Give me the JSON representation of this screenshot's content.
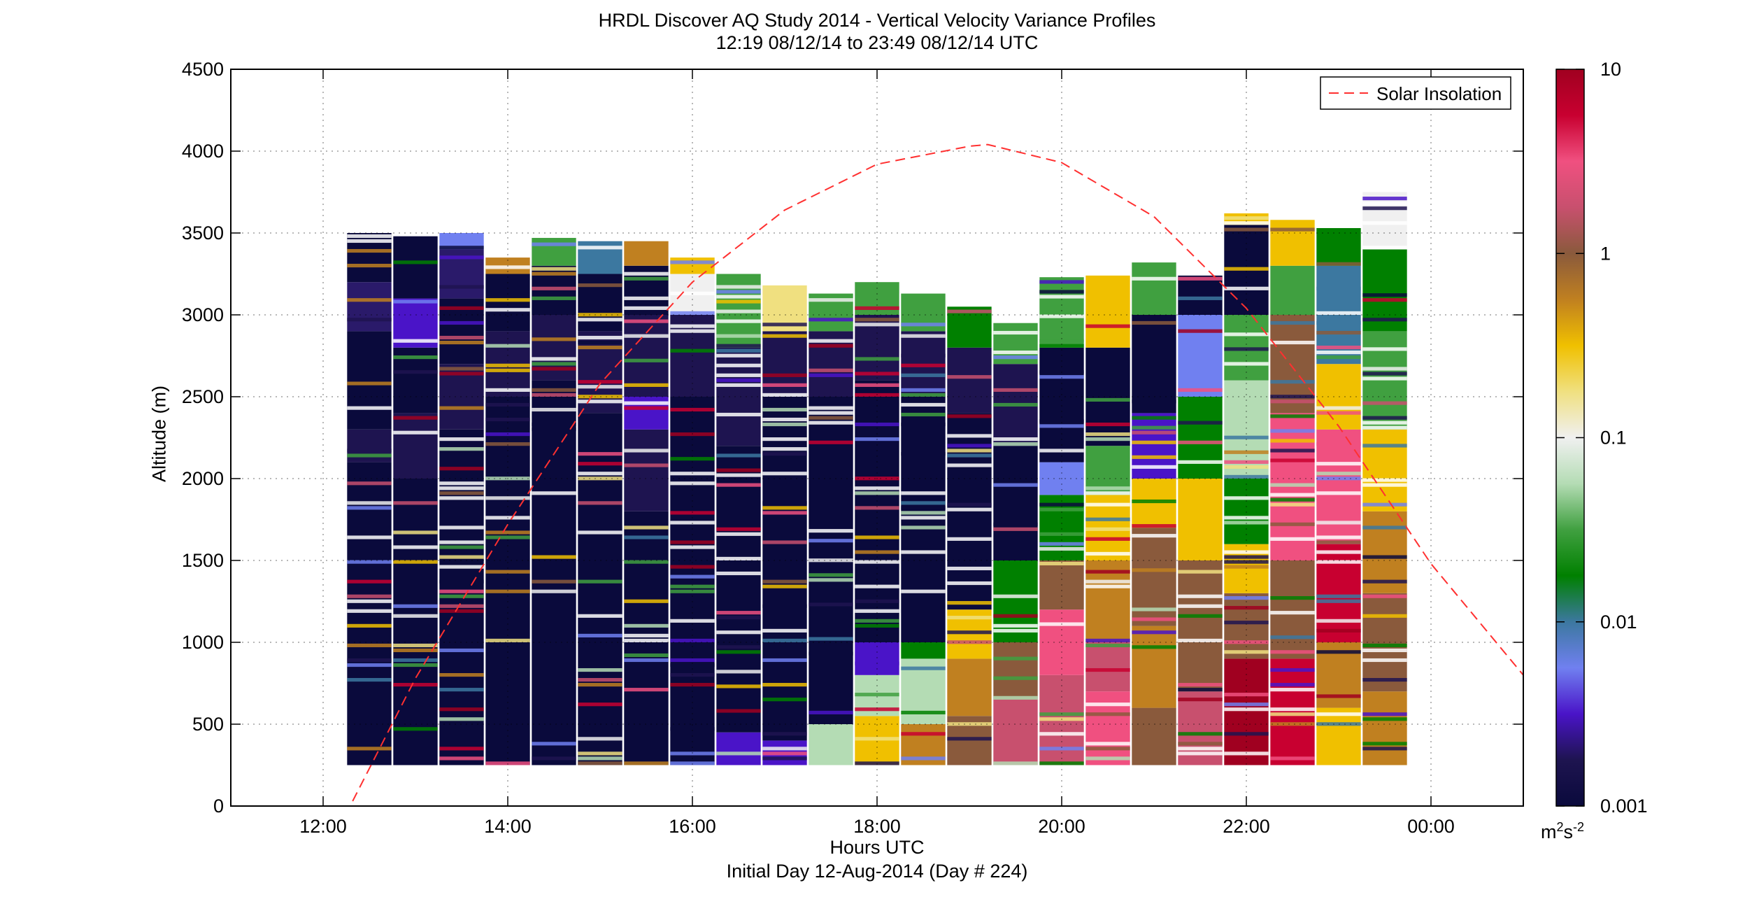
{
  "chart_data": {
    "type": "heatmap",
    "title": "HRDL Discover AQ Study 2014 - Vertical Velocity Variance Profiles",
    "subtitle": "12:19 08/12/14 to 23:49 08/12/14  UTC",
    "xlabel": "Hours UTC",
    "xlabel2": "Initial Day 12-Aug-2014 (Day # 224)",
    "ylabel": "Altitude (m)",
    "xlim": [
      11.0,
      25.0
    ],
    "ylim": [
      0,
      4500
    ],
    "x_ticks": [
      12,
      14,
      16,
      18,
      20,
      22,
      24
    ],
    "x_tick_labels": [
      "12:00",
      "14:00",
      "16:00",
      "18:00",
      "20:00",
      "22:00",
      "00:00"
    ],
    "y_ticks": [
      0,
      500,
      1000,
      1500,
      2000,
      2500,
      3000,
      3500,
      4000,
      4500
    ],
    "y_tick_labels": [
      "0",
      "500",
      "1000",
      "1500",
      "2000",
      "2500",
      "3000",
      "3500",
      "4000",
      "4500"
    ],
    "grid": true,
    "colorbar": {
      "scale": "log",
      "range": [
        0.001,
        10
      ],
      "ticks": [
        0.001,
        0.01,
        0.1,
        1,
        10
      ],
      "tick_labels": [
        "0.001",
        "0.01",
        "0.1",
        "1",
        "10"
      ],
      "unit_base": "m",
      "unit_exp1": "2",
      "unit_mid": "s",
      "unit_exp2": "-2",
      "colors": [
        "#0a0a3c",
        "#1e1450",
        "#4a14c8",
        "#7080f0",
        "#3c78a0",
        "#008000",
        "#40a040",
        "#b4dcb4",
        "#f0f0f0",
        "#f0e080",
        "#f0c000",
        "#c08020",
        "#8a5a3c",
        "#c8506e",
        "#f05080",
        "#c80030",
        "#a00020"
      ]
    },
    "legend": {
      "entries": [
        "Solar Insolation"
      ],
      "position": "top-right"
    },
    "solar_insolation": {
      "x": [
        12.32,
        13.0,
        14.0,
        15.0,
        16.0,
        17.0,
        18.0,
        19.0,
        19.2,
        20.0,
        21.0,
        22.0,
        23.0,
        24.0,
        25.0
      ],
      "y": [
        30,
        780,
        1720,
        2580,
        3200,
        3640,
        3920,
        4030,
        4040,
        3930,
        3600,
        3040,
        2320,
        1480,
        800
      ]
    },
    "profiles": [
      {
        "t": 12.5,
        "top": 3500,
        "bins": [
          [
            250,
            2100,
            "#0a0a3c"
          ],
          [
            2100,
            2300,
            "#1e1450"
          ],
          [
            2300,
            2900,
            "#0a0a3c"
          ],
          [
            2900,
            3200,
            "#2a1a6a"
          ],
          [
            3200,
            3500,
            "#0a0a3c"
          ]
        ]
      },
      {
        "t": 13.0,
        "top": 3480,
        "bins": [
          [
            250,
            2000,
            "#0a0a3c"
          ],
          [
            2000,
            2400,
            "#1e1450"
          ],
          [
            2400,
            2800,
            "#0a0a3c"
          ],
          [
            2800,
            3100,
            "#4a14c8"
          ],
          [
            3100,
            3480,
            "#0a0a3c"
          ]
        ]
      },
      {
        "t": 13.5,
        "top": 3500,
        "bins": [
          [
            250,
            2300,
            "#0a0a3c"
          ],
          [
            2300,
            2700,
            "#1e1450"
          ],
          [
            2700,
            3100,
            "#0a0a3c"
          ],
          [
            3100,
            3400,
            "#2a1a6a"
          ],
          [
            3400,
            3500,
            "#7080f0"
          ]
        ]
      },
      {
        "t": 14.0,
        "top": 3350,
        "bins": [
          [
            250,
            2500,
            "#0a0a3c"
          ],
          [
            2500,
            2900,
            "#1e1450"
          ],
          [
            2900,
            3250,
            "#0a0a3c"
          ],
          [
            3250,
            3350,
            "#c08020"
          ]
        ]
      },
      {
        "t": 14.5,
        "top": 3470,
        "bins": [
          [
            250,
            2600,
            "#0a0a3c"
          ],
          [
            2600,
            3000,
            "#1e1450"
          ],
          [
            3000,
            3300,
            "#0a0a3c"
          ],
          [
            3300,
            3470,
            "#40a040"
          ]
        ]
      },
      {
        "t": 15.0,
        "top": 3450,
        "bins": [
          [
            250,
            2400,
            "#0a0a3c"
          ],
          [
            2400,
            2900,
            "#1e1450"
          ],
          [
            2900,
            3250,
            "#0a0a3c"
          ],
          [
            3250,
            3450,
            "#3c78a0"
          ]
        ]
      },
      {
        "t": 15.5,
        "top": 3450,
        "bins": [
          [
            250,
            1800,
            "#0a0a3c"
          ],
          [
            1800,
            2300,
            "#1e1450"
          ],
          [
            2300,
            2500,
            "#4a14c8"
          ],
          [
            2500,
            3000,
            "#1e1450"
          ],
          [
            3000,
            3300,
            "#0a0a3c"
          ],
          [
            3300,
            3450,
            "#c08020"
          ]
        ]
      },
      {
        "t": 16.0,
        "top": 3350,
        "bins": [
          [
            250,
            2500,
            "#0a0a3c"
          ],
          [
            2500,
            3000,
            "#1e1450"
          ],
          [
            3000,
            3250,
            "#f0f0f0"
          ],
          [
            3250,
            3350,
            "#f0c000"
          ]
        ]
      },
      {
        "t": 16.5,
        "top": 3250,
        "bins": [
          [
            250,
            450,
            "#4a14c8"
          ],
          [
            450,
            2200,
            "#0a0a3c"
          ],
          [
            2200,
            2800,
            "#1e1450"
          ],
          [
            2800,
            3250,
            "#40a040"
          ]
        ]
      },
      {
        "t": 17.0,
        "top": 3180,
        "bins": [
          [
            250,
            400,
            "#4a14c8"
          ],
          [
            400,
            2500,
            "#0a0a3c"
          ],
          [
            2500,
            2900,
            "#1e1450"
          ],
          [
            2900,
            3180,
            "#f0e080"
          ]
        ]
      },
      {
        "t": 17.5,
        "top": 3130,
        "bins": [
          [
            250,
            500,
            "#b4dcb4"
          ],
          [
            500,
            2500,
            "#0a0a3c"
          ],
          [
            2500,
            2900,
            "#1e1450"
          ],
          [
            2900,
            3130,
            "#40a040"
          ]
        ]
      },
      {
        "t": 18.0,
        "top": 3200,
        "bins": [
          [
            250,
            550,
            "#f0c000"
          ],
          [
            550,
            800,
            "#b4dcb4"
          ],
          [
            800,
            1000,
            "#4a14c8"
          ],
          [
            1000,
            2600,
            "#0a0a3c"
          ],
          [
            2600,
            3000,
            "#1e1450"
          ],
          [
            3000,
            3200,
            "#40a040"
          ]
        ]
      },
      {
        "t": 18.5,
        "top": 3130,
        "bins": [
          [
            250,
            500,
            "#c08020"
          ],
          [
            500,
            900,
            "#b4dcb4"
          ],
          [
            900,
            1000,
            "#008000"
          ],
          [
            1000,
            2500,
            "#0a0a3c"
          ],
          [
            2500,
            2900,
            "#1e1450"
          ],
          [
            2900,
            3130,
            "#40a040"
          ]
        ]
      },
      {
        "t": 19.0,
        "top": 3050,
        "bins": [
          [
            250,
            550,
            "#8a5a3c"
          ],
          [
            550,
            900,
            "#c08020"
          ],
          [
            900,
            1200,
            "#f0c000"
          ],
          [
            1200,
            2400,
            "#0a0a3c"
          ],
          [
            2400,
            2800,
            "#1e1450"
          ],
          [
            2800,
            3050,
            "#008000"
          ]
        ]
      },
      {
        "t": 19.5,
        "top": 2950,
        "bins": [
          [
            250,
            650,
            "#c8506e"
          ],
          [
            650,
            1000,
            "#8a5a3c"
          ],
          [
            1000,
            1500,
            "#008000"
          ],
          [
            1500,
            2200,
            "#0a0a3c"
          ],
          [
            2200,
            2700,
            "#1e1450"
          ],
          [
            2700,
            2950,
            "#40a040"
          ]
        ]
      },
      {
        "t": 20.0,
        "top": 3230,
        "bins": [
          [
            250,
            800,
            "#c8506e"
          ],
          [
            800,
            1200,
            "#f05080"
          ],
          [
            1200,
            1500,
            "#8a5a3c"
          ],
          [
            1500,
            1900,
            "#008000"
          ],
          [
            1900,
            2100,
            "#7080f0"
          ],
          [
            2100,
            2800,
            "#0a0a3c"
          ],
          [
            2800,
            3230,
            "#40a040"
          ]
        ]
      },
      {
        "t": 20.5,
        "top": 3240,
        "bins": [
          [
            250,
            700,
            "#f05080"
          ],
          [
            700,
            1000,
            "#c8506e"
          ],
          [
            1000,
            1500,
            "#c08020"
          ],
          [
            1500,
            1900,
            "#f0c000"
          ],
          [
            1900,
            2200,
            "#40a040"
          ],
          [
            2200,
            2800,
            "#0a0a3c"
          ],
          [
            2800,
            3240,
            "#f0c000"
          ]
        ]
      },
      {
        "t": 21.0,
        "top": 3320,
        "bins": [
          [
            250,
            600,
            "#8a5a3c"
          ],
          [
            600,
            1100,
            "#c08020"
          ],
          [
            1100,
            1700,
            "#8a5a3c"
          ],
          [
            1700,
            2000,
            "#f0c000"
          ],
          [
            2000,
            2400,
            "#4a14c8"
          ],
          [
            2400,
            3000,
            "#0a0a3c"
          ],
          [
            3000,
            3320,
            "#40a040"
          ]
        ]
      },
      {
        "t": 21.5,
        "top": 3240,
        "bins": [
          [
            250,
            700,
            "#c8506e"
          ],
          [
            700,
            1500,
            "#8a5a3c"
          ],
          [
            1500,
            2000,
            "#f0c000"
          ],
          [
            2000,
            2500,
            "#008000"
          ],
          [
            2500,
            3000,
            "#7080f0"
          ],
          [
            3000,
            3240,
            "#0a0a3c"
          ]
        ]
      },
      {
        "t": 22.0,
        "top": 3620,
        "bins": [
          [
            250,
            900,
            "#a00020"
          ],
          [
            900,
            1300,
            "#8a5a3c"
          ],
          [
            1300,
            1600,
            "#f0c000"
          ],
          [
            1600,
            2000,
            "#008000"
          ],
          [
            2000,
            2600,
            "#b4dcb4"
          ],
          [
            2600,
            3000,
            "#40a040"
          ],
          [
            3000,
            3550,
            "#0a0a3c"
          ],
          [
            3550,
            3620,
            "#f0c000"
          ]
        ]
      },
      {
        "t": 22.5,
        "top": 3580,
        "bins": [
          [
            250,
            900,
            "#c80030"
          ],
          [
            900,
            1500,
            "#8a5a3c"
          ],
          [
            1500,
            2400,
            "#f05080"
          ],
          [
            2400,
            3000,
            "#8a5a3c"
          ],
          [
            3000,
            3300,
            "#40a040"
          ],
          [
            3300,
            3580,
            "#f0c000"
          ]
        ]
      },
      {
        "t": 23.0,
        "top": 3530,
        "bins": [
          [
            250,
            600,
            "#f0c000"
          ],
          [
            600,
            1000,
            "#c08020"
          ],
          [
            1000,
            1600,
            "#c80030"
          ],
          [
            1600,
            2300,
            "#f05080"
          ],
          [
            2300,
            2700,
            "#f0c000"
          ],
          [
            2700,
            3300,
            "#3c78a0"
          ],
          [
            3300,
            3530,
            "#008000"
          ]
        ]
      },
      {
        "t": 23.5,
        "top": 3750,
        "bins": [
          [
            250,
            700,
            "#c08020"
          ],
          [
            700,
            1300,
            "#8a5a3c"
          ],
          [
            1300,
            1800,
            "#c08020"
          ],
          [
            1800,
            2300,
            "#f0c000"
          ],
          [
            2300,
            2900,
            "#40a040"
          ],
          [
            2900,
            3400,
            "#008000"
          ],
          [
            3400,
            3750,
            "#f0f0f0"
          ]
        ]
      }
    ]
  }
}
